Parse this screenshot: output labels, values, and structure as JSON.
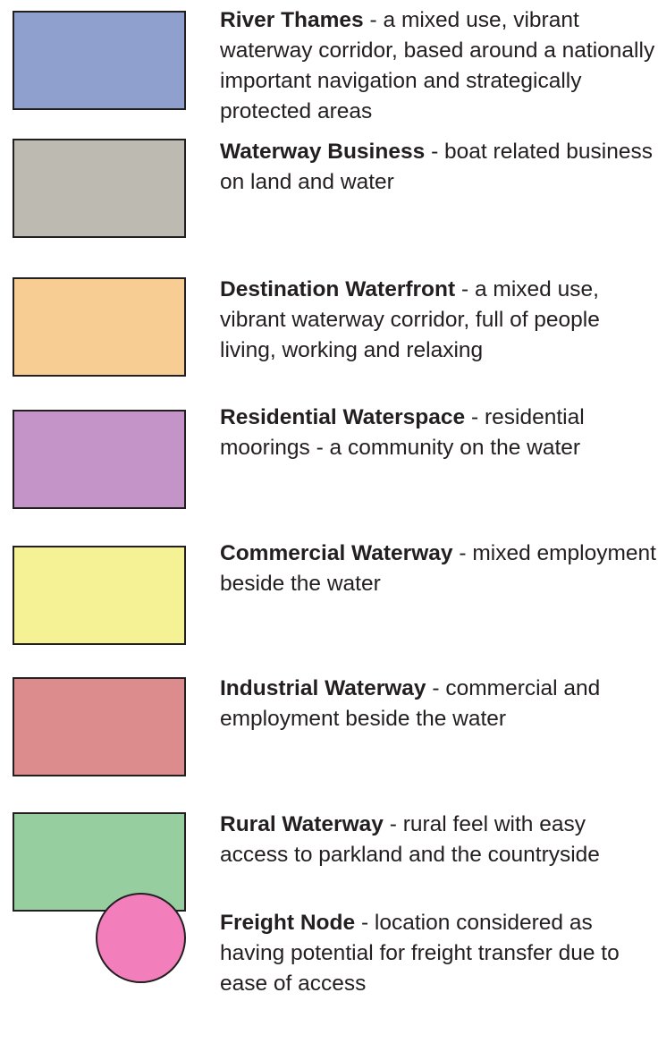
{
  "legend": {
    "items": [
      {
        "name": "River Thames",
        "description": "- a mixed use, vibrant waterway corridor, based around a nationally important navigation and strategically protected areas",
        "color": "#8fa0cf",
        "shape": "rect"
      },
      {
        "name": "Waterway Business",
        "description": "- boat related business on land and water",
        "color": "#bdbab2",
        "shape": "rect"
      },
      {
        "name": "Destination Waterfront",
        "description": "- a mixed use, vibrant waterway corridor, full of people living, working and relaxing",
        "color": "#f7cd94",
        "shape": "rect"
      },
      {
        "name": "Residential Waterspace",
        "description": "- residential moorings - a community on the water",
        "color": "#c493c8",
        "shape": "rect"
      },
      {
        "name": "Commercial Waterway",
        "description": "- mixed employment beside the water",
        "color": "#f4f294",
        "shape": "rect"
      },
      {
        "name": "Industrial Waterway",
        "description": "- commercial and employment beside the water",
        "color": "#dc8c8d",
        "shape": "rect"
      },
      {
        "name": "Rural Waterway",
        "description": "- rural feel with easy access to parkland and the countryside",
        "color": "#96cea0",
        "shape": "rect"
      },
      {
        "name": "Freight Node",
        "description": "- location considered as having potential for freight transfer due to ease of access",
        "color": "#f27fbc",
        "shape": "circle"
      }
    ]
  }
}
